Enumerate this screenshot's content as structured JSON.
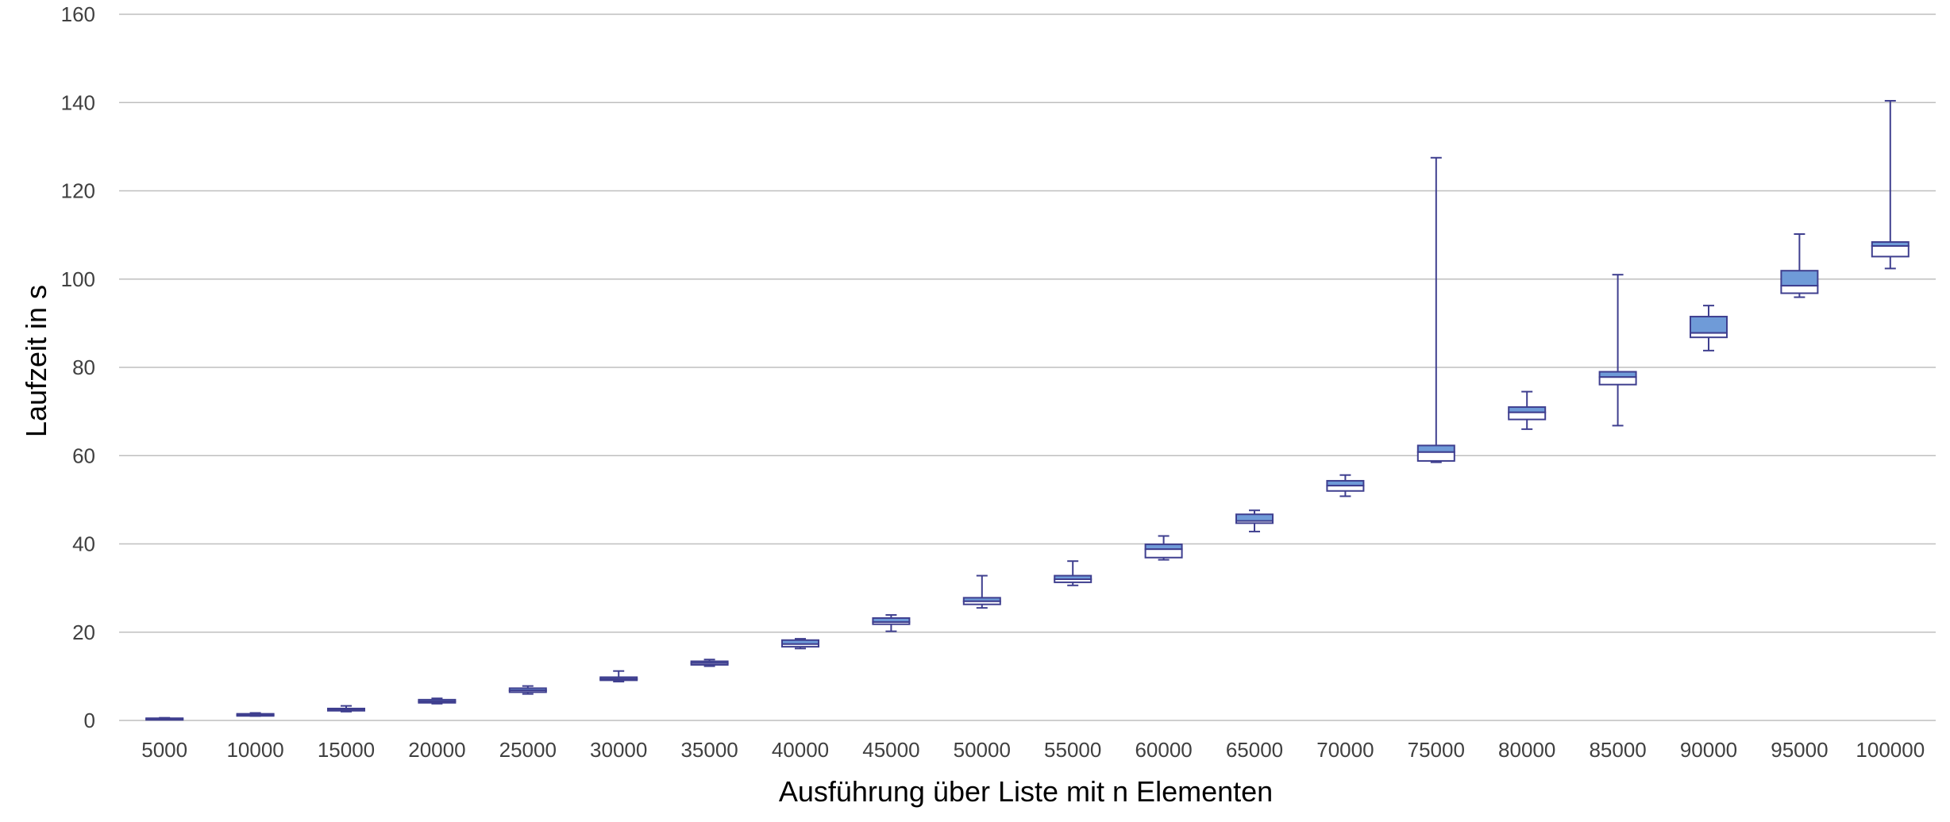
{
  "chart_data": {
    "type": "boxplot",
    "xlabel": "Ausführung über Liste mit n Elementen",
    "ylabel": "Laufzeit in s",
    "ylim": [
      0,
      160
    ],
    "yticks": [
      0,
      20,
      40,
      60,
      80,
      100,
      120,
      140,
      160
    ],
    "grid": true,
    "colors": {
      "box_upper": "#6f9bd8",
      "box_lower": "#ffffff",
      "stroke": "#3f3f8f",
      "grid": "#bfbfbf"
    },
    "categories": [
      "5000",
      "10000",
      "15000",
      "20000",
      "25000",
      "30000",
      "35000",
      "40000",
      "45000",
      "50000",
      "55000",
      "60000",
      "65000",
      "70000",
      "75000",
      "80000",
      "85000",
      "90000",
      "95000",
      "100000"
    ],
    "boxes": [
      {
        "min": 0.2,
        "q1": 0.3,
        "median": 0.4,
        "q3": 0.5,
        "max": 0.6
      },
      {
        "min": 1.0,
        "q1": 1.1,
        "median": 1.3,
        "q3": 1.5,
        "max": 1.7
      },
      {
        "min": 2.0,
        "q1": 2.2,
        "median": 2.5,
        "q3": 2.7,
        "max": 3.3
      },
      {
        "min": 3.8,
        "q1": 4.0,
        "median": 4.3,
        "q3": 4.7,
        "max": 5.0
      },
      {
        "min": 6.0,
        "q1": 6.4,
        "median": 6.8,
        "q3": 7.3,
        "max": 7.8
      },
      {
        "min": 8.8,
        "q1": 9.1,
        "median": 9.4,
        "q3": 9.8,
        "max": 11.2
      },
      {
        "min": 12.3,
        "q1": 12.6,
        "median": 13.0,
        "q3": 13.4,
        "max": 13.8
      },
      {
        "min": 16.3,
        "q1": 16.7,
        "median": 17.3,
        "q3": 18.2,
        "max": 18.5
      },
      {
        "min": 20.2,
        "q1": 21.8,
        "median": 22.3,
        "q3": 23.2,
        "max": 23.9
      },
      {
        "min": 25.5,
        "q1": 26.3,
        "median": 27.0,
        "q3": 27.8,
        "max": 32.8
      },
      {
        "min": 30.6,
        "q1": 31.3,
        "median": 32.0,
        "q3": 32.8,
        "max": 36.1
      },
      {
        "min": 36.4,
        "q1": 36.9,
        "median": 38.8,
        "q3": 39.9,
        "max": 41.8
      },
      {
        "min": 42.8,
        "q1": 44.7,
        "median": 45.2,
        "q3": 46.7,
        "max": 47.6
      },
      {
        "min": 50.8,
        "q1": 52.0,
        "median": 53.2,
        "q3": 54.3,
        "max": 55.6
      },
      {
        "min": 58.5,
        "q1": 58.8,
        "median": 60.8,
        "q3": 62.3,
        "max": 127.5
      },
      {
        "min": 66.0,
        "q1": 68.2,
        "median": 69.8,
        "q3": 71.0,
        "max": 74.5
      },
      {
        "min": 66.8,
        "q1": 76.1,
        "median": 77.8,
        "q3": 79.0,
        "max": 101.0
      },
      {
        "min": 83.8,
        "q1": 86.8,
        "median": 87.8,
        "q3": 91.5,
        "max": 94.0
      },
      {
        "min": 95.9,
        "q1": 96.8,
        "median": 98.5,
        "q3": 101.9,
        "max": 110.2
      },
      {
        "min": 102.4,
        "q1": 105.1,
        "median": 107.5,
        "q3": 108.4,
        "max": 140.4
      }
    ]
  }
}
